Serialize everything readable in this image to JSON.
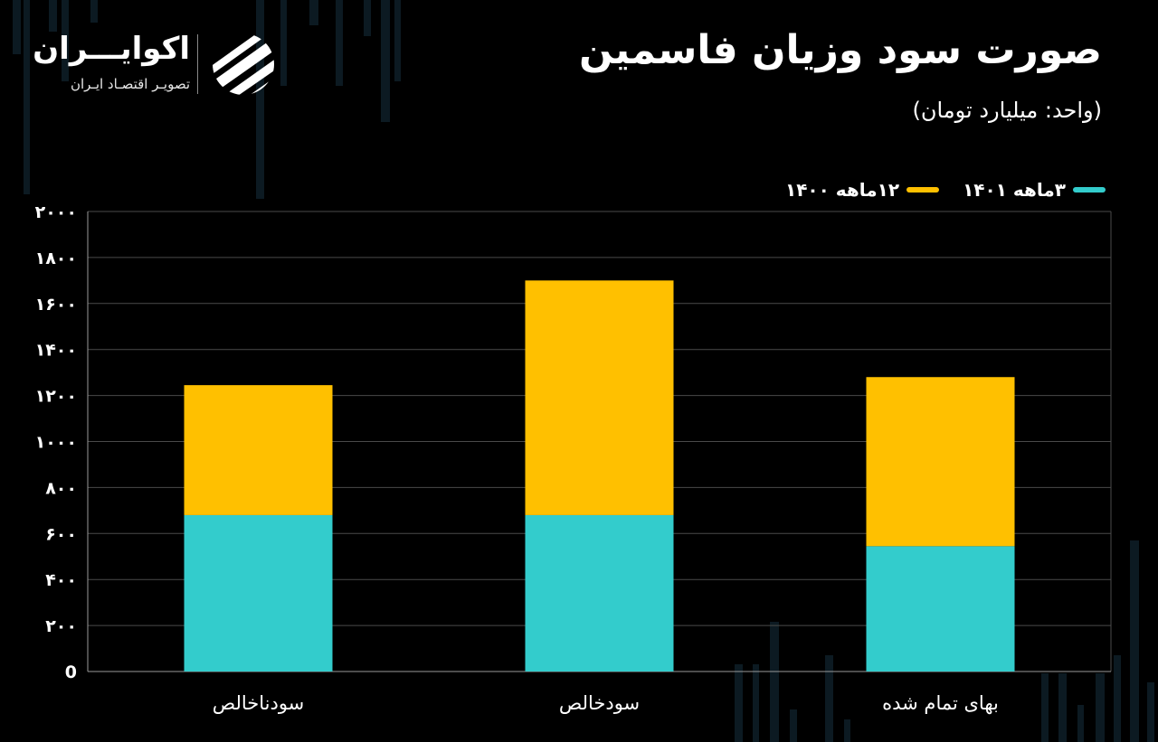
{
  "header": {
    "title": "صورت سود وزیان فاسمین",
    "subtitle": "(واحد: میلیارد تومان)"
  },
  "logo": {
    "name": "اکوایـــران",
    "tagline": "تصویـر اقتصـاد ایـران"
  },
  "colors": {
    "background": "#000000",
    "q1401": "#33CCCC",
    "y1400": "#FFC000",
    "grid": "#4a4a4a"
  },
  "chart_data": {
    "type": "bar",
    "stacked": true,
    "categories": [
      "سودناخالص",
      "سودخالص",
      "بهای تمام شده"
    ],
    "series": [
      {
        "name": "۳ماهه ۱۴۰۱",
        "values": [
          680,
          680,
          545
        ],
        "color": "#33CCCC"
      },
      {
        "name": "۱۲ماهه ۱۴۰۰",
        "values": [
          565,
          1020,
          735
        ],
        "color": "#FFC000"
      }
    ],
    "ylim": [
      0,
      2000
    ],
    "yticks": [
      0,
      200,
      400,
      600,
      800,
      1000,
      1200,
      1400,
      1600,
      1800,
      2000
    ],
    "ytick_labels": [
      "0",
      "۲۰۰",
      "۴۰۰",
      "۶۰۰",
      "۸۰۰",
      "۱۰۰۰",
      "۱۲۰۰",
      "۱۴۰۰",
      "۱۶۰۰",
      "۱۸۰۰",
      "۲۰۰۰"
    ],
    "grid": true,
    "legend_position": "top-right",
    "title": "صورت سود وزیان فاسمین",
    "ylabel": "",
    "xlabel": ""
  }
}
